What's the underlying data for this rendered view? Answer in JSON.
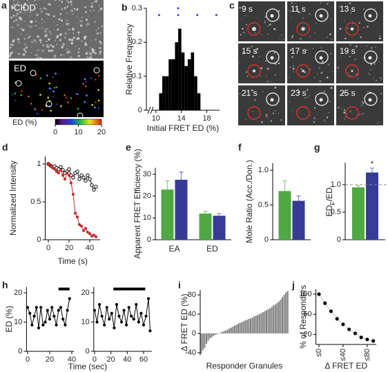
{
  "panel_labels": [
    "a",
    "b",
    "c",
    "d",
    "e",
    "f",
    "g",
    "h",
    "i",
    "j"
  ],
  "images": {
    "a": {
      "top_label": "CIDD",
      "bottom_label": "ED",
      "colorbar": {
        "label": "ED (%)",
        "lim": [
          0,
          20
        ],
        "ticks": [
          0,
          10,
          20
        ]
      }
    },
    "c": {
      "frames": [
        "9 s",
        "11 s",
        "13 s",
        "15 s",
        "17 s",
        "19 s",
        "21 s",
        "23 s",
        "25 s"
      ]
    }
  },
  "chart_data": [
    {
      "type": "histogram",
      "ylabel": "Relative Frequency",
      "xlabel": "Initial FRET ED (%)",
      "bins": [
        10.5,
        11,
        11.5,
        12,
        12.5,
        13,
        13.5,
        14,
        14.5,
        15,
        15.5,
        16,
        16.5,
        17
      ],
      "counts": [
        0.05,
        0.1,
        0.1,
        0.15,
        0.15,
        0.2,
        0.24,
        0.17,
        0.13,
        0.15,
        0.17,
        0.1,
        0.05
      ],
      "color": "#000000",
      "xlim": [
        8.5,
        20
      ],
      "xticks": [
        10,
        14,
        18
      ],
      "ylim": [
        0,
        0.3
      ],
      "yticks": [
        0,
        0.1,
        0.2,
        0.3
      ],
      "markers": {
        "x": [
          10.5,
          13.5,
          13.5,
          16.5,
          19.5
        ],
        "y": [
          0.28,
          0.3,
          0.28,
          0.28,
          0.28
        ],
        "color": "#3b3bd6"
      }
    },
    {
      "type": "line",
      "ylabel": "Normalized Intensity",
      "xlabel": "Time (s)",
      "x": [
        0,
        2,
        4,
        6,
        8,
        10,
        12,
        14,
        16,
        18,
        20,
        22,
        24,
        26,
        28,
        30,
        32,
        34,
        36,
        38,
        40,
        42,
        44,
        46
      ],
      "series": [
        {
          "color": "#000000",
          "fill": "#ffffff",
          "values": [
            1.0,
            0.98,
            0.96,
            0.97,
            0.95,
            0.93,
            0.96,
            0.92,
            0.88,
            0.9,
            0.93,
            0.85,
            0.82,
            0.88,
            0.9,
            0.8,
            0.85,
            0.82,
            0.78,
            0.85,
            0.8,
            0.72,
            0.66,
            0.7
          ]
        },
        {
          "color": "#c8282d",
          "fill": "#c8282d",
          "values": [
            1.0,
            0.98,
            0.95,
            0.93,
            0.9,
            0.88,
            0.92,
            0.85,
            0.8,
            0.88,
            0.85,
            0.75,
            0.6,
            0.35,
            0.3,
            0.2,
            0.18,
            0.12,
            0.15,
            0.1,
            0.08,
            0.05,
            0.06,
            0.04
          ]
        }
      ],
      "xlim": [
        -3,
        50
      ],
      "xticks": [
        0,
        20,
        40
      ],
      "ylim": [
        0,
        1.1
      ],
      "yticks": [
        0,
        0.5,
        1
      ]
    },
    {
      "type": "bar",
      "ylabel": "Apparent FRET Efficiency (%)",
      "categories": [
        "EA",
        "ED"
      ],
      "series": [
        {
          "color": "#4fa843",
          "values": [
            23,
            12
          ],
          "errors": [
            4,
            1
          ]
        },
        {
          "color": "#363c96",
          "values": [
            27.5,
            11
          ],
          "errors": [
            3.5,
            1
          ]
        }
      ],
      "ylim": [
        0,
        33
      ],
      "yticks": [
        0,
        10,
        20,
        30
      ]
    },
    {
      "type": "bar",
      "ylabel": "Mole Ratio (Acc./Don.)",
      "series": [
        {
          "color": "#4fa843",
          "values": [
            0.7
          ],
          "errors": [
            0.15
          ]
        },
        {
          "color": "#363c96",
          "values": [
            0.56
          ],
          "errors": [
            0.07
          ]
        }
      ],
      "ylim": [
        0,
        1.1
      ],
      "yticks": [
        0,
        {
          "value": 0.5,
          "label": "0.5"
        },
        {
          "value": 1,
          "label": "1.0"
        }
      ]
    },
    {
      "type": "bar",
      "ylabel": [
        "ED",
        "F",
        "/ED",
        "I"
      ],
      "annotation": "*",
      "reference_line": 1,
      "series": [
        {
          "color": "#4fa843",
          "values": [
            0.95
          ],
          "errors": [
            0.03
          ]
        },
        {
          "color": "#363c96",
          "values": [
            1.22
          ],
          "errors": [
            0.08
          ]
        }
      ],
      "ylim": [
        0,
        1.4
      ],
      "yticks": [
        0,
        {
          "value": 0.5,
          "label": "0.5"
        },
        {
          "value": 1,
          "label": "1.0"
        }
      ]
    },
    {
      "type": "line",
      "ylabel": "ED (%)",
      "xlabel": "Time (sec)",
      "x": [
        0,
        2,
        4,
        6,
        8,
        10,
        12,
        14,
        16,
        18,
        20,
        22,
        24,
        26,
        28,
        30,
        32,
        34,
        36,
        38
      ],
      "series": [
        {
          "color": "#000000",
          "fill": "#000000",
          "values": [
            15,
            13,
            9,
            12,
            15,
            8,
            15,
            9,
            10,
            14,
            11,
            15,
            12,
            9,
            14,
            15,
            11,
            9,
            14,
            18
          ]
        }
      ],
      "stimulus": [
        28,
        38
      ],
      "xlim": [
        -1,
        42
      ],
      "xticks": [
        0,
        20,
        40
      ],
      "ylim": [
        0,
        22
      ],
      "yticks": [
        0,
        10,
        20
      ]
    },
    {
      "type": "line",
      "x": [
        0,
        3,
        6,
        9,
        12,
        15,
        18,
        21,
        24,
        27,
        30,
        33,
        36,
        39,
        42,
        45,
        48,
        51,
        54,
        57,
        60,
        63,
        66,
        68
      ],
      "series": [
        {
          "color": "#000000",
          "fill": "#000000",
          "values": [
            14,
            10,
            16,
            12,
            9,
            15,
            11,
            13,
            8,
            16,
            12,
            10,
            14,
            9,
            15,
            12,
            11,
            16,
            10,
            13,
            9,
            12,
            18,
            7
          ]
        }
      ],
      "stimulus": [
        23,
        62
      ],
      "xlim": [
        -1,
        70
      ],
      "xticks": [
        0,
        20,
        40,
        60
      ],
      "ylim": [
        0,
        22
      ],
      "yticks": [
        0,
        10,
        20
      ]
    },
    {
      "type": "bar",
      "ylabel": "Δ FRET ED (%)",
      "xlabel": "Responder Granules",
      "color": "#7a7a7a",
      "values": [
        -42,
        -35,
        -30,
        -22,
        -15,
        -10,
        -8,
        -5,
        -3,
        -2,
        0,
        2,
        3,
        5,
        6,
        8,
        10,
        12,
        14,
        16,
        18,
        20,
        22,
        23,
        25,
        27,
        28,
        30,
        31,
        33,
        35,
        37,
        38,
        40,
        42,
        44,
        46,
        48,
        50,
        52,
        55,
        58,
        60,
        63,
        66,
        70,
        75,
        80,
        85,
        88
      ],
      "ylim": [
        -45,
        90
      ],
      "yticks": [
        -40,
        0,
        40,
        80
      ]
    },
    {
      "type": "scatter",
      "ylabel": "% of Responders",
      "xlabel": "Δ FRET ED",
      "color": "#000000",
      "x": [
        0,
        10,
        20,
        30,
        40,
        50,
        60,
        70,
        80,
        90
      ],
      "values": [
        100,
        82,
        66,
        51,
        40,
        30,
        22,
        14,
        10,
        7
      ],
      "xlim": [
        -5,
        95
      ],
      "xticks": [
        {
          "value": 0,
          "label": "≤0"
        },
        {
          "value": 40,
          "label": "≤40"
        },
        {
          "value": 80,
          "label": "≤80"
        }
      ],
      "ylim": [
        0,
        110
      ],
      "yticks": [
        20,
        60,
        100
      ]
    }
  ]
}
